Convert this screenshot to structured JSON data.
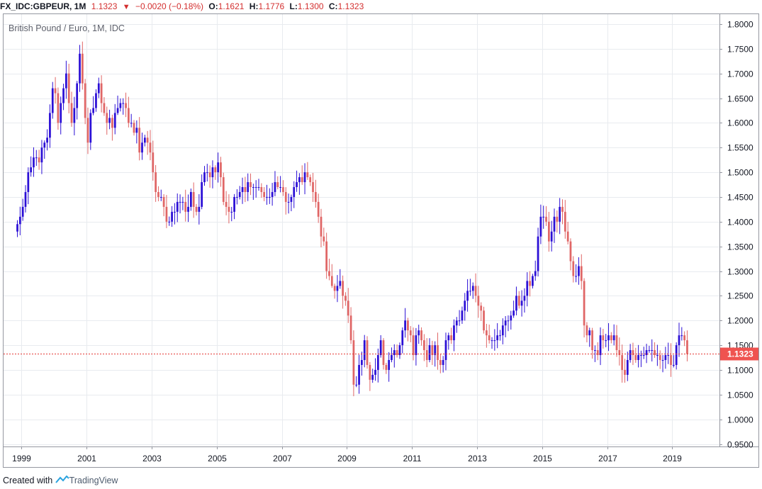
{
  "header": {
    "symbol": "FX_IDC:GBPEUR, 1M",
    "last": "1.1323",
    "change": "−0.0020 (−0.18%)",
    "o_label": "O:",
    "o_value": "1.1621",
    "h_label": "H:",
    "h_value": "1.1776",
    "l_label": "L:",
    "l_value": "1.1300",
    "c_label": "C:",
    "c_value": "1.1323"
  },
  "footer": {
    "created_with": "Created with",
    "brand": "TradingView"
  },
  "colors": {
    "up": "#2b0fd6",
    "down": "#e06666",
    "grid": "#e8ebef",
    "price_line": "#e53935",
    "price_tag": "#ef5350"
  },
  "chart_data": {
    "type": "candlestick",
    "title": "British Pound / Euro, 1M, IDC",
    "interval": "1M",
    "xlim": [
      1998.45,
      2020.45
    ],
    "ylim": [
      0.945,
      1.82
    ],
    "x_ticks": [
      1999,
      2001,
      2003,
      2005,
      2007,
      2009,
      2011,
      2013,
      2015,
      2017,
      2019
    ],
    "x_tick_labels": [
      "1999",
      "2001",
      "2003",
      "2005",
      "2007",
      "2009",
      "2011",
      "2013",
      "2015",
      "2017",
      "2019"
    ],
    "y_ticks": [
      0.95,
      1.0,
      1.05,
      1.1,
      1.15,
      1.2,
      1.25,
      1.3,
      1.35,
      1.4,
      1.45,
      1.5,
      1.55,
      1.6,
      1.65,
      1.7,
      1.75,
      1.8
    ],
    "y_tick_labels": [
      "0.9500",
      "1.0000",
      "1.0500",
      "1.1000",
      "1.1500",
      "1.2000",
      "1.2500",
      "1.3000",
      "1.3500",
      "1.4000",
      "1.4500",
      "1.5000",
      "1.5500",
      "1.6000",
      "1.6500",
      "1.7000",
      "1.7500",
      "1.8000"
    ],
    "last_price": 1.1323,
    "last_price_label": "1.1323",
    "grid": true,
    "start": [
      1998,
      11
    ],
    "closes": [
      1.395,
      1.41,
      1.43,
      1.46,
      1.5,
      1.51,
      1.53,
      1.53,
      1.52,
      1.55,
      1.56,
      1.57,
      1.62,
      1.67,
      1.66,
      1.6,
      1.64,
      1.67,
      1.7,
      1.64,
      1.6,
      1.63,
      1.68,
      1.74,
      1.68,
      1.61,
      1.56,
      1.62,
      1.63,
      1.66,
      1.68,
      1.64,
      1.62,
      1.6,
      1.61,
      1.59,
      1.62,
      1.63,
      1.64,
      1.64,
      1.63,
      1.6,
      1.6,
      1.58,
      1.59,
      1.54,
      1.56,
      1.57,
      1.56,
      1.54,
      1.5,
      1.46,
      1.45,
      1.45,
      1.43,
      1.4,
      1.4,
      1.42,
      1.42,
      1.44,
      1.44,
      1.44,
      1.42,
      1.43,
      1.46,
      1.43,
      1.42,
      1.43,
      1.48,
      1.5,
      1.5,
      1.49,
      1.51,
      1.5,
      1.52,
      1.49,
      1.44,
      1.43,
      1.42,
      1.42,
      1.45,
      1.45,
      1.46,
      1.47,
      1.46,
      1.48,
      1.47,
      1.47,
      1.47,
      1.47,
      1.46,
      1.45,
      1.45,
      1.45,
      1.46,
      1.48,
      1.47,
      1.47,
      1.46,
      1.44,
      1.44,
      1.45,
      1.47,
      1.48,
      1.49,
      1.48,
      1.5,
      1.49,
      1.48,
      1.46,
      1.44,
      1.41,
      1.37,
      1.36,
      1.3,
      1.29,
      1.27,
      1.26,
      1.27,
      1.28,
      1.25,
      1.24,
      1.21,
      1.16,
      1.07,
      1.07,
      1.11,
      1.12,
      1.16,
      1.11,
      1.08,
      1.09,
      1.1,
      1.13,
      1.16,
      1.11,
      1.1,
      1.12,
      1.13,
      1.14,
      1.13,
      1.15,
      1.18,
      1.2,
      1.18,
      1.17,
      1.13,
      1.17,
      1.18,
      1.16,
      1.14,
      1.12,
      1.15,
      1.13,
      1.15,
      1.12,
      1.11,
      1.12,
      1.16,
      1.17,
      1.16,
      1.19,
      1.2,
      1.2,
      1.22,
      1.24,
      1.26,
      1.26,
      1.27,
      1.25,
      1.23,
      1.22,
      1.18,
      1.17,
      1.16,
      1.16,
      1.16,
      1.17,
      1.17,
      1.19,
      1.2,
      1.2,
      1.21,
      1.22,
      1.25,
      1.23,
      1.24,
      1.25,
      1.28,
      1.27,
      1.29,
      1.3,
      1.37,
      1.41,
      1.41,
      1.4,
      1.36,
      1.38,
      1.41,
      1.4,
      1.43,
      1.42,
      1.38,
      1.36,
      1.32,
      1.29,
      1.29,
      1.31,
      1.28,
      1.19,
      1.17,
      1.18,
      1.14,
      1.14,
      1.13,
      1.17,
      1.16,
      1.16,
      1.17,
      1.16,
      1.17,
      1.14,
      1.13,
      1.1,
      1.09,
      1.12,
      1.14,
      1.13,
      1.12,
      1.13,
      1.13,
      1.13,
      1.14,
      1.14,
      1.14,
      1.13,
      1.13,
      1.12,
      1.12,
      1.13,
      1.13,
      1.11,
      1.11,
      1.15,
      1.17,
      1.17,
      1.16,
      1.1323
    ]
  }
}
